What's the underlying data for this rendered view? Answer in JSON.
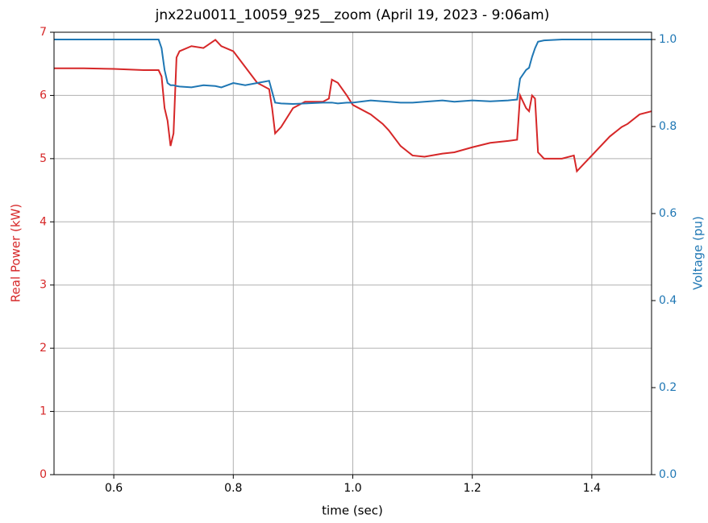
{
  "chart_data": {
    "type": "line",
    "title": "jnx22u0011_10059_925__zoom (April 19, 2023 - 9:06am)",
    "x_label": "time (sec)",
    "y_label": "Real Power (kW)",
    "y2_label": "Voltage (pu)",
    "x": [
      0.5,
      0.55,
      0.6,
      0.65,
      0.675,
      0.68,
      0.685,
      0.69,
      0.695,
      0.7,
      0.705,
      0.71,
      0.73,
      0.75,
      0.77,
      0.78,
      0.8,
      0.82,
      0.84,
      0.86,
      0.865,
      0.87,
      0.88,
      0.9,
      0.92,
      0.95,
      0.96,
      0.965,
      0.975,
      0.99,
      1.0,
      1.03,
      1.05,
      1.06,
      1.08,
      1.1,
      1.12,
      1.15,
      1.17,
      1.2,
      1.23,
      1.26,
      1.275,
      1.28,
      1.29,
      1.295,
      1.3,
      1.305,
      1.31,
      1.32,
      1.35,
      1.37,
      1.375,
      1.38,
      1.4,
      1.43,
      1.45,
      1.46,
      1.48,
      1.5
    ],
    "series": [
      {
        "name": "Real Power (kW)",
        "color": "#d62728",
        "axis": "y",
        "values": [
          6.43,
          6.43,
          6.42,
          6.4,
          6.4,
          6.3,
          5.8,
          5.6,
          5.2,
          5.4,
          6.6,
          6.7,
          6.78,
          6.75,
          6.88,
          6.78,
          6.7,
          6.45,
          6.2,
          6.1,
          5.8,
          5.4,
          5.5,
          5.8,
          5.9,
          5.9,
          5.95,
          6.25,
          6.2,
          6.0,
          5.85,
          5.7,
          5.55,
          5.45,
          5.2,
          5.05,
          5.03,
          5.08,
          5.1,
          5.18,
          5.25,
          5.28,
          5.3,
          6.0,
          5.8,
          5.75,
          6.0,
          5.95,
          5.1,
          5.0,
          5.0,
          5.05,
          4.8,
          4.85,
          5.05,
          5.35,
          5.5,
          5.55,
          5.7,
          5.75
        ]
      },
      {
        "name": "Voltage (pu)",
        "color": "#1f77b4",
        "axis": "y2",
        "values": [
          1.0,
          1.0,
          1.0,
          1.0,
          1.0,
          0.98,
          0.93,
          0.9,
          0.895,
          0.895,
          0.893,
          0.892,
          0.89,
          0.895,
          0.893,
          0.89,
          0.9,
          0.895,
          0.9,
          0.905,
          0.88,
          0.855,
          0.853,
          0.852,
          0.853,
          0.855,
          0.855,
          0.855,
          0.853,
          0.855,
          0.855,
          0.86,
          0.858,
          0.857,
          0.855,
          0.855,
          0.857,
          0.86,
          0.857,
          0.86,
          0.858,
          0.86,
          0.862,
          0.91,
          0.93,
          0.935,
          0.96,
          0.98,
          0.995,
          0.998,
          1.0,
          1.0,
          1.0,
          1.0,
          1.0,
          1.0,
          1.0,
          1.0,
          1.0,
          1.0
        ]
      }
    ],
    "xlim": [
      0.5,
      1.5
    ],
    "xticks": [
      0.6,
      0.8,
      {
        "value": 1.0,
        "label": "1.0"
      },
      1.2,
      1.4
    ],
    "ylim": [
      0,
      7
    ],
    "yticks": [
      0,
      1,
      2,
      3,
      4,
      5,
      6,
      7
    ],
    "y2lim": [
      0,
      1.0167
    ],
    "y2ticks": [
      {
        "value": 0,
        "label": "0.0"
      },
      0.2,
      0.4,
      0.6,
      0.8,
      {
        "value": 1.0,
        "label": "1.0"
      }
    ],
    "grid": true
  }
}
